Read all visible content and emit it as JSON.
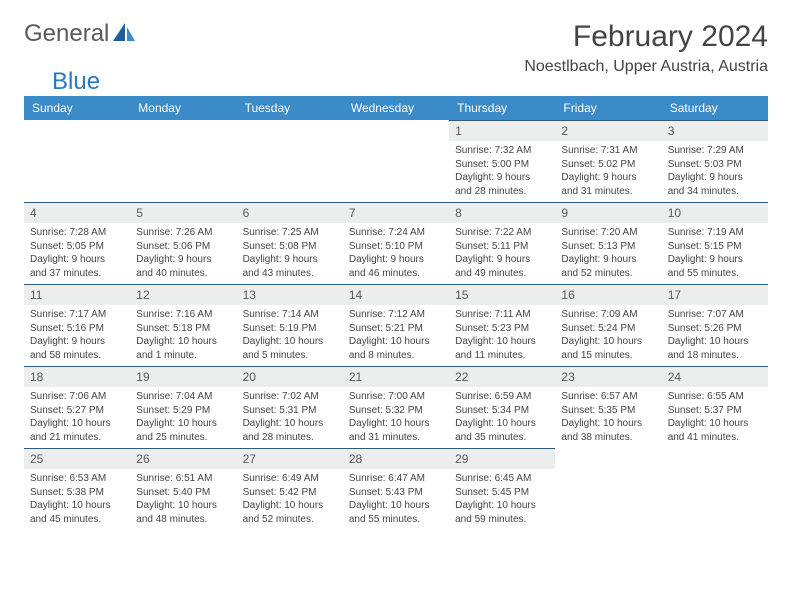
{
  "logo": {
    "part1": "General",
    "part2": "Blue"
  },
  "title": "February 2024",
  "location": "Noestlbach, Upper Austria, Austria",
  "colors": {
    "header_bg": "#3b8bc9",
    "dayrow_bg": "#eceded",
    "dayrow_border": "#2f5a80",
    "text": "#444444",
    "logo_gray": "#5a5a5a",
    "logo_blue": "#2b78c2"
  },
  "weekdays": [
    "Sunday",
    "Monday",
    "Tuesday",
    "Wednesday",
    "Thursday",
    "Friday",
    "Saturday"
  ],
  "weeks": [
    [
      null,
      null,
      null,
      null,
      {
        "n": "1",
        "sunrise": "7:32 AM",
        "sunset": "5:00 PM",
        "daylight": "9 hours and 28 minutes."
      },
      {
        "n": "2",
        "sunrise": "7:31 AM",
        "sunset": "5:02 PM",
        "daylight": "9 hours and 31 minutes."
      },
      {
        "n": "3",
        "sunrise": "7:29 AM",
        "sunset": "5:03 PM",
        "daylight": "9 hours and 34 minutes."
      }
    ],
    [
      {
        "n": "4",
        "sunrise": "7:28 AM",
        "sunset": "5:05 PM",
        "daylight": "9 hours and 37 minutes."
      },
      {
        "n": "5",
        "sunrise": "7:26 AM",
        "sunset": "5:06 PM",
        "daylight": "9 hours and 40 minutes."
      },
      {
        "n": "6",
        "sunrise": "7:25 AM",
        "sunset": "5:08 PM",
        "daylight": "9 hours and 43 minutes."
      },
      {
        "n": "7",
        "sunrise": "7:24 AM",
        "sunset": "5:10 PM",
        "daylight": "9 hours and 46 minutes."
      },
      {
        "n": "8",
        "sunrise": "7:22 AM",
        "sunset": "5:11 PM",
        "daylight": "9 hours and 49 minutes."
      },
      {
        "n": "9",
        "sunrise": "7:20 AM",
        "sunset": "5:13 PM",
        "daylight": "9 hours and 52 minutes."
      },
      {
        "n": "10",
        "sunrise": "7:19 AM",
        "sunset": "5:15 PM",
        "daylight": "9 hours and 55 minutes."
      }
    ],
    [
      {
        "n": "11",
        "sunrise": "7:17 AM",
        "sunset": "5:16 PM",
        "daylight": "9 hours and 58 minutes."
      },
      {
        "n": "12",
        "sunrise": "7:16 AM",
        "sunset": "5:18 PM",
        "daylight": "10 hours and 1 minute."
      },
      {
        "n": "13",
        "sunrise": "7:14 AM",
        "sunset": "5:19 PM",
        "daylight": "10 hours and 5 minutes."
      },
      {
        "n": "14",
        "sunrise": "7:12 AM",
        "sunset": "5:21 PM",
        "daylight": "10 hours and 8 minutes."
      },
      {
        "n": "15",
        "sunrise": "7:11 AM",
        "sunset": "5:23 PM",
        "daylight": "10 hours and 11 minutes."
      },
      {
        "n": "16",
        "sunrise": "7:09 AM",
        "sunset": "5:24 PM",
        "daylight": "10 hours and 15 minutes."
      },
      {
        "n": "17",
        "sunrise": "7:07 AM",
        "sunset": "5:26 PM",
        "daylight": "10 hours and 18 minutes."
      }
    ],
    [
      {
        "n": "18",
        "sunrise": "7:06 AM",
        "sunset": "5:27 PM",
        "daylight": "10 hours and 21 minutes."
      },
      {
        "n": "19",
        "sunrise": "7:04 AM",
        "sunset": "5:29 PM",
        "daylight": "10 hours and 25 minutes."
      },
      {
        "n": "20",
        "sunrise": "7:02 AM",
        "sunset": "5:31 PM",
        "daylight": "10 hours and 28 minutes."
      },
      {
        "n": "21",
        "sunrise": "7:00 AM",
        "sunset": "5:32 PM",
        "daylight": "10 hours and 31 minutes."
      },
      {
        "n": "22",
        "sunrise": "6:59 AM",
        "sunset": "5:34 PM",
        "daylight": "10 hours and 35 minutes."
      },
      {
        "n": "23",
        "sunrise": "6:57 AM",
        "sunset": "5:35 PM",
        "daylight": "10 hours and 38 minutes."
      },
      {
        "n": "24",
        "sunrise": "6:55 AM",
        "sunset": "5:37 PM",
        "daylight": "10 hours and 41 minutes."
      }
    ],
    [
      {
        "n": "25",
        "sunrise": "6:53 AM",
        "sunset": "5:38 PM",
        "daylight": "10 hours and 45 minutes."
      },
      {
        "n": "26",
        "sunrise": "6:51 AM",
        "sunset": "5:40 PM",
        "daylight": "10 hours and 48 minutes."
      },
      {
        "n": "27",
        "sunrise": "6:49 AM",
        "sunset": "5:42 PM",
        "daylight": "10 hours and 52 minutes."
      },
      {
        "n": "28",
        "sunrise": "6:47 AM",
        "sunset": "5:43 PM",
        "daylight": "10 hours and 55 minutes."
      },
      {
        "n": "29",
        "sunrise": "6:45 AM",
        "sunset": "5:45 PM",
        "daylight": "10 hours and 59 minutes."
      },
      null,
      null
    ]
  ]
}
